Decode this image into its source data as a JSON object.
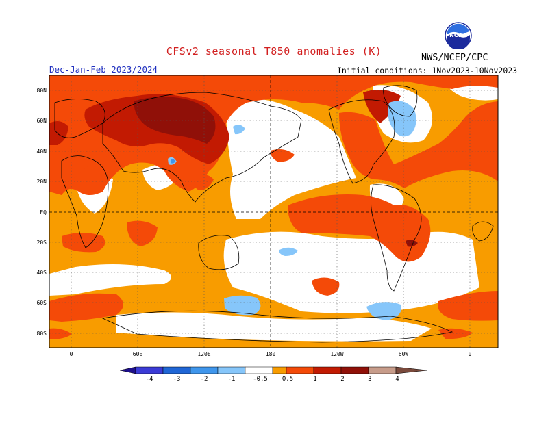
{
  "header": {
    "title": "CFSv2 seasonal T850 anomalies (K)",
    "subtitle": "Dec-Jan-Feb 2023/2024",
    "initial_conditions": "Initial conditions: 1Nov2023-10Nov2023",
    "agency": "NWS/NCEP/CPC",
    "logo_text": "NOAA"
  },
  "map": {
    "lat_labels": [
      "80N",
      "60N",
      "40N",
      "20N",
      "EQ",
      "20S",
      "40S",
      "60S",
      "80S"
    ],
    "lon_labels": [
      "0",
      "60E",
      "120E",
      "180",
      "120W",
      "60W",
      "0"
    ]
  },
  "colorbar": {
    "labels": [
      "-4",
      "-3",
      "-2",
      "-1",
      "-0.5",
      "0.5",
      "1",
      "2",
      "3",
      "4"
    ],
    "colors": [
      "#1e0f8c",
      "#3b3bd6",
      "#1f66d6",
      "#3f96ec",
      "#86c6fa",
      "#ffffff",
      "#f89c00",
      "#f44a08",
      "#c21a02",
      "#901008",
      "#c79c8a",
      "#7a4a3c"
    ]
  },
  "anomaly_colors": {
    "weak_warm": "#f89c00",
    "warm": "#f44a08",
    "strong_warm": "#c21a02",
    "very_strong_warm": "#901008",
    "weak_cold": "#86c6fa",
    "cold": "#3f96ec"
  }
}
